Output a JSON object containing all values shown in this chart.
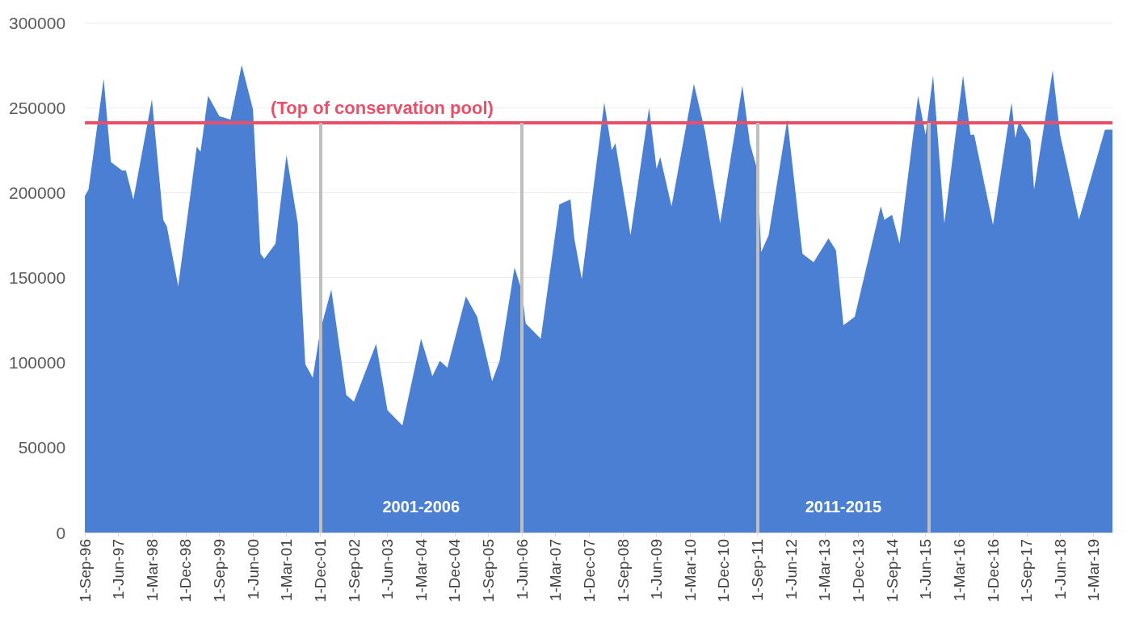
{
  "chart_data": {
    "type": "area",
    "x": [
      "1996-09",
      "1996-10",
      "1997-02",
      "1997-04",
      "1997-07",
      "1997-08",
      "1997-10",
      "1998-03",
      "1998-06",
      "1998-07",
      "1998-10",
      "1999-03",
      "1999-04",
      "1999-06",
      "1999-09",
      "1999-12",
      "2000-03",
      "2000-06",
      "2000-08",
      "2000-09",
      "2000-12",
      "2001-03",
      "2001-06",
      "2001-08",
      "2001-10",
      "2001-12",
      "2002-03",
      "2002-07",
      "2002-09",
      "2003-03",
      "2003-06",
      "2003-10",
      "2004-03",
      "2004-06",
      "2004-08",
      "2004-10",
      "2005-03",
      "2005-06",
      "2005-10",
      "2005-12",
      "2006-04",
      "2006-06",
      "2006-07",
      "2006-11",
      "2007-04",
      "2007-07",
      "2007-08",
      "2007-10",
      "2008-04",
      "2008-06",
      "2008-07",
      "2008-11",
      "2009-04",
      "2009-06",
      "2009-07",
      "2009-10",
      "2010-04",
      "2010-07",
      "2010-11",
      "2011-05",
      "2011-07",
      "2011-09",
      "2011-10",
      "2011-12",
      "2012-05",
      "2012-09",
      "2012-12",
      "2013-04",
      "2013-06",
      "2013-08",
      "2013-11",
      "2014-06",
      "2014-07",
      "2014-09",
      "2014-11",
      "2015-04",
      "2015-06",
      "2015-08",
      "2015-11",
      "2016-04",
      "2016-06",
      "2016-07",
      "2016-12",
      "2017-05",
      "2017-06",
      "2017-07",
      "2017-10",
      "2017-11",
      "2018-04",
      "2018-06",
      "2018-11",
      "2019-06",
      "2019-08"
    ],
    "values": [
      198000,
      202000,
      267000,
      218000,
      213000,
      213000,
      196000,
      255000,
      184000,
      180000,
      145000,
      227000,
      224000,
      257000,
      245000,
      243000,
      275000,
      249000,
      164000,
      161000,
      170000,
      222000,
      182000,
      99000,
      91000,
      119000,
      143000,
      81000,
      77000,
      111000,
      72000,
      63000,
      114000,
      92000,
      101000,
      97000,
      139000,
      127000,
      89000,
      101000,
      156000,
      142000,
      123000,
      114000,
      193000,
      196000,
      173000,
      149000,
      253000,
      225000,
      229000,
      175000,
      250000,
      214000,
      221000,
      192000,
      264000,
      236000,
      182000,
      263000,
      229000,
      213000,
      165000,
      175000,
      243000,
      164000,
      159000,
      173000,
      166000,
      122000,
      127000,
      192000,
      184000,
      187000,
      170000,
      257000,
      234000,
      269000,
      182000,
      269000,
      234000,
      234000,
      181000,
      253000,
      232000,
      242000,
      231000,
      202000,
      272000,
      234000,
      184000,
      237000,
      237000
    ],
    "color": "#4a7fd4",
    "xlim": [
      "1996-09",
      "2019-08"
    ],
    "xticks": [
      {
        "value": "1996-09",
        "label": "1-Sep-96"
      },
      {
        "value": "1997-06",
        "label": "1-Jun-97"
      },
      {
        "value": "1998-03",
        "label": "1-Mar-98"
      },
      {
        "value": "1998-12",
        "label": "1-Dec-98"
      },
      {
        "value": "1999-09",
        "label": "1-Sep-99"
      },
      {
        "value": "2000-06",
        "label": "1-Jun-00"
      },
      {
        "value": "2001-03",
        "label": "1-Mar-01"
      },
      {
        "value": "2001-12",
        "label": "1-Dec-01"
      },
      {
        "value": "2002-09",
        "label": "1-Sep-02"
      },
      {
        "value": "2003-06",
        "label": "1-Jun-03"
      },
      {
        "value": "2004-03",
        "label": "1-Mar-04"
      },
      {
        "value": "2004-12",
        "label": "1-Dec-04"
      },
      {
        "value": "2005-09",
        "label": "1-Sep-05"
      },
      {
        "value": "2006-06",
        "label": "1-Jun-06"
      },
      {
        "value": "2007-03",
        "label": "1-Mar-07"
      },
      {
        "value": "2007-12",
        "label": "1-Dec-07"
      },
      {
        "value": "2008-09",
        "label": "1-Sep-08"
      },
      {
        "value": "2009-06",
        "label": "1-Jun-09"
      },
      {
        "value": "2010-03",
        "label": "1-Mar-10"
      },
      {
        "value": "2010-12",
        "label": "1-Dec-10"
      },
      {
        "value": "2011-09",
        "label": "1-Sep-11"
      },
      {
        "value": "2012-06",
        "label": "1-Jun-12"
      },
      {
        "value": "2013-03",
        "label": "1-Mar-13"
      },
      {
        "value": "2013-12",
        "label": "1-Dec-13"
      },
      {
        "value": "2014-09",
        "label": "1-Sep-14"
      },
      {
        "value": "2015-06",
        "label": "1-Jun-15"
      },
      {
        "value": "2016-03",
        "label": "1-Mar-16"
      },
      {
        "value": "2016-12",
        "label": "1-Dec-16"
      },
      {
        "value": "2017-09",
        "label": "1-Sep-17"
      },
      {
        "value": "2018-06",
        "label": "1-Jun-18"
      },
      {
        "value": "2019-03",
        "label": "1-Mar-19"
      }
    ],
    "ylim": [
      0,
      300000
    ],
    "yticks": [
      0,
      50000,
      100000,
      150000,
      200000,
      250000,
      300000
    ],
    "grid": "y",
    "ref_lines": [
      {
        "axis": "y",
        "value": 241000,
        "label": "(Top of conservation pool)",
        "color": "#e8506a"
      },
      {
        "axis": "x",
        "value": "2001-12",
        "color": "#bfbfbf"
      },
      {
        "axis": "x",
        "value": "2006-06",
        "color": "#bfbfbf"
      },
      {
        "axis": "x",
        "value": "2011-09",
        "color": "#bfbfbf"
      },
      {
        "axis": "x",
        "value": "2015-07",
        "color": "#bfbfbf"
      }
    ],
    "annotations": [
      "2001-2006",
      "2011-2015"
    ]
  }
}
